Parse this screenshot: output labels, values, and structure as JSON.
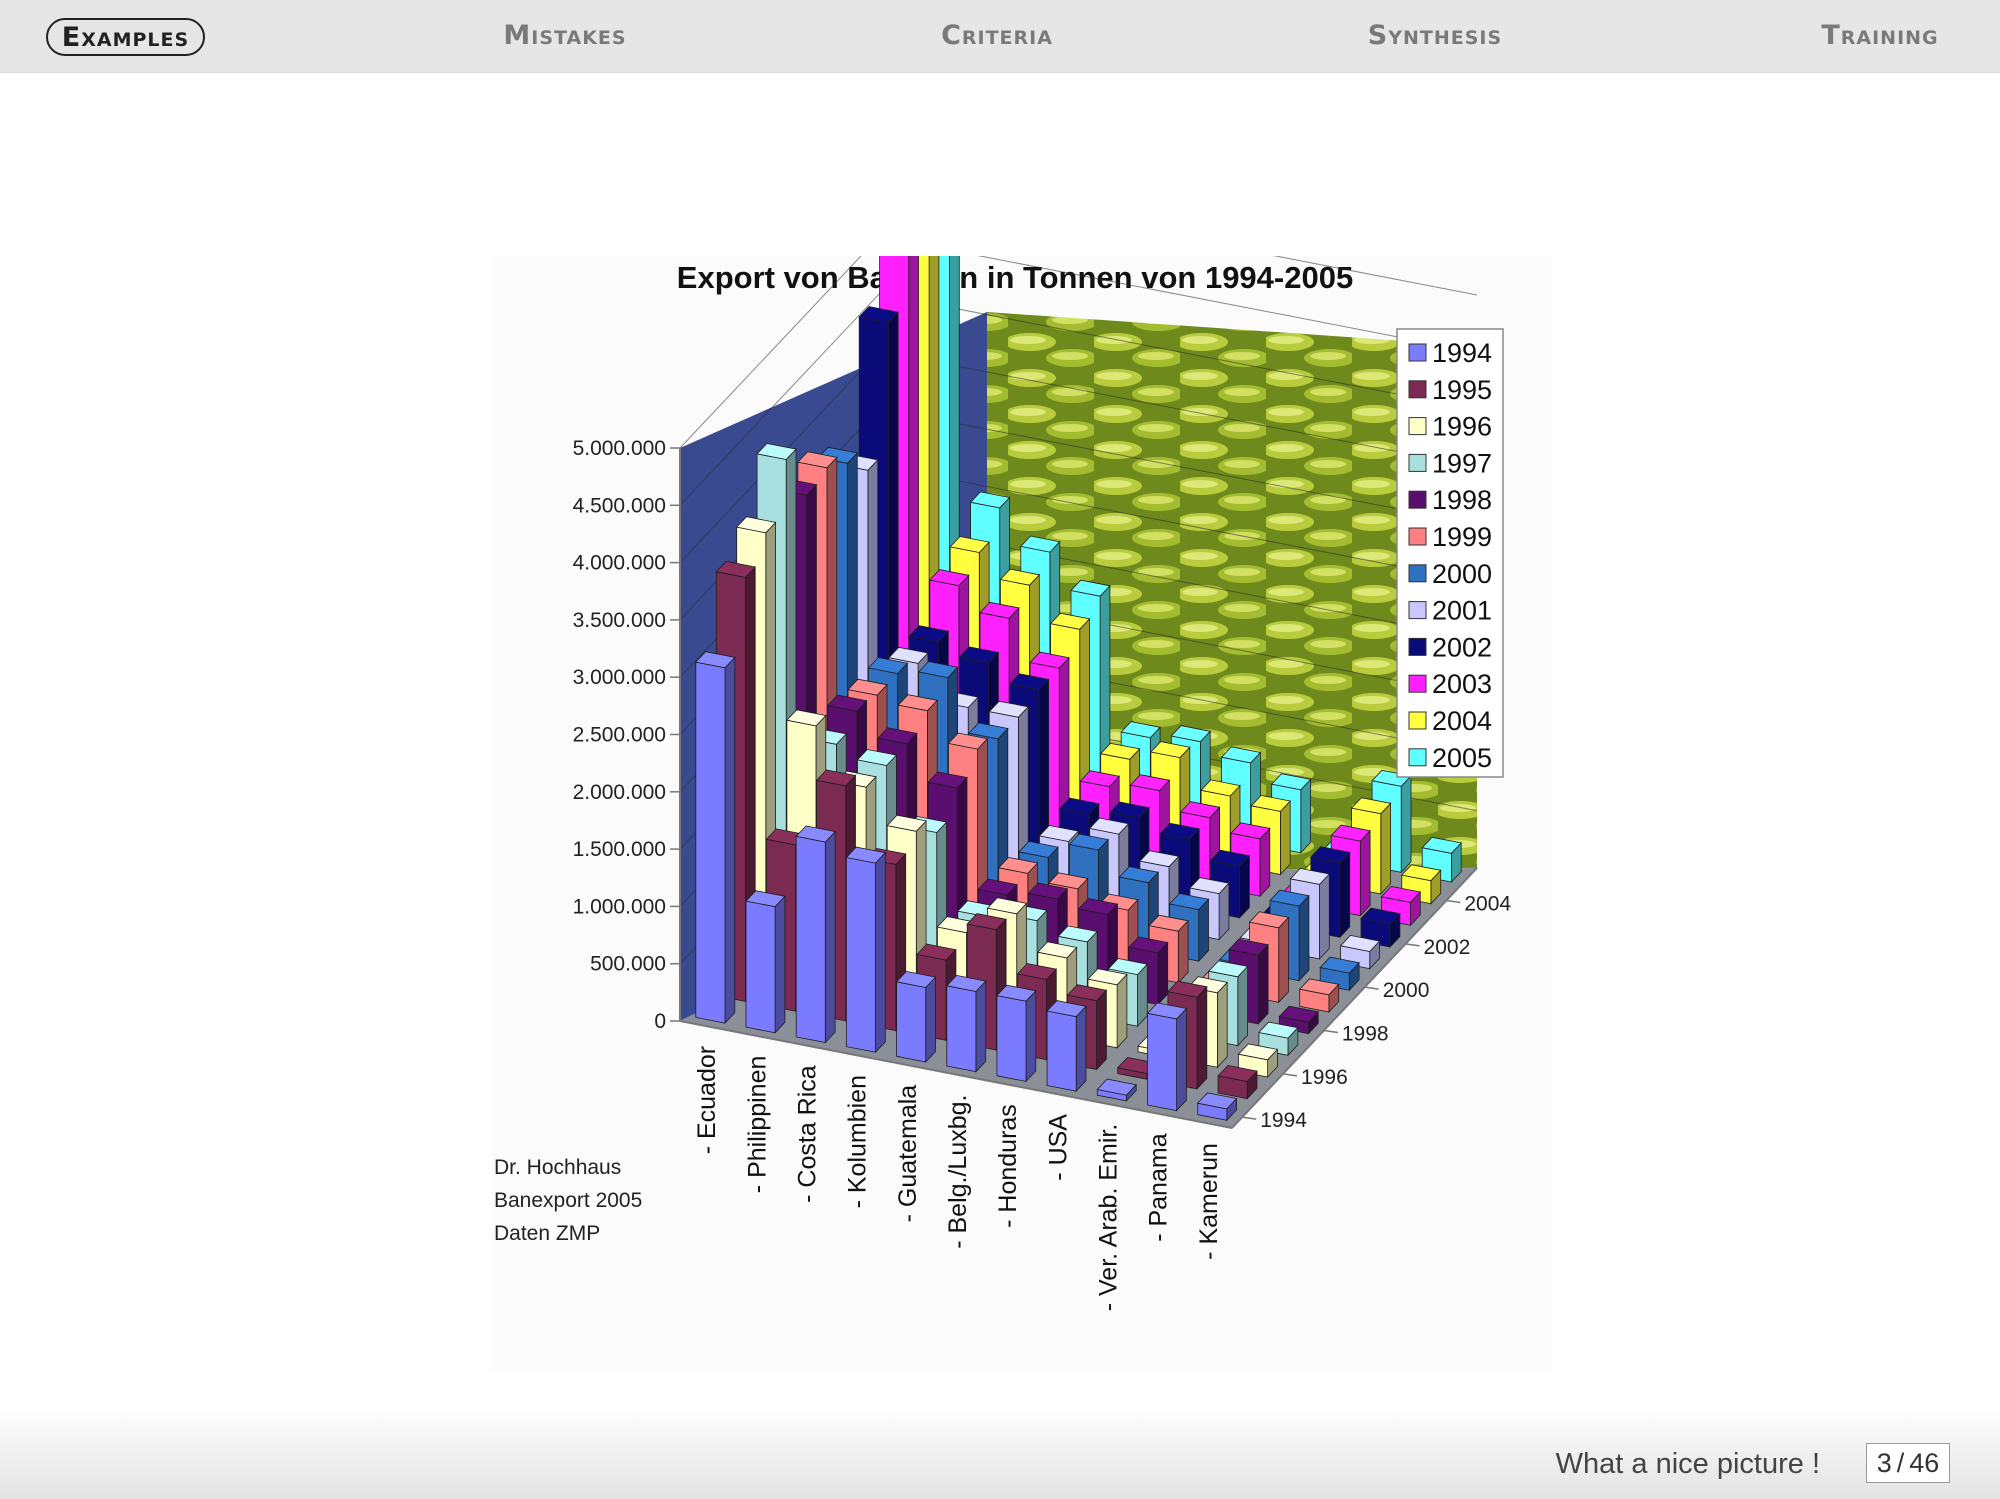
{
  "nav": {
    "items": [
      {
        "label": "Examples",
        "active": true
      },
      {
        "label": "Mistakes",
        "active": false
      },
      {
        "label": "Criteria",
        "active": false
      },
      {
        "label": "Synthesis",
        "active": false
      },
      {
        "label": "Training",
        "active": false
      }
    ]
  },
  "footer": {
    "caption": "What a nice picture !",
    "page_current": "3",
    "page_total": "46"
  },
  "figure": {
    "background": "banana-photo",
    "credit_lines": [
      "Dr. Hochhaus",
      "Banexport 2005",
      "Daten ZMP"
    ]
  },
  "chart_data": {
    "type": "bar",
    "variant": "3d-grouped",
    "title": "Export von Bananen in Tonnen von 1994-2005",
    "categories": [
      "- Ecuador",
      "- Philippinen",
      "- Costa Rica",
      "- Kolumbien",
      "- Guatemala",
      "- Belg./Luxbg.",
      "- Honduras",
      "- USA",
      "- Ver. Arab. Emir.",
      "- Panama",
      "- Kamerun"
    ],
    "y_ticks": [
      "0",
      "500.000",
      "1.000.000",
      "1.500.000",
      "2.000.000",
      "2.500.000",
      "3.000.000",
      "3.500.000",
      "4.000.000",
      "4.500.000",
      "5.000.000"
    ],
    "z_ticks": [
      "1994",
      "1996",
      "1998",
      "2000",
      "2002",
      "2004"
    ],
    "ylim": [
      0,
      5000000
    ],
    "legend_position": "top-right",
    "series": [
      {
        "name": "1994",
        "color": "#7b7bff",
        "values": [
          3100000,
          1100000,
          1750000,
          1650000,
          650000,
          700000,
          700000,
          650000,
          50000,
          800000,
          100000
        ]
      },
      {
        "name": "1995",
        "color": "#7b2a52",
        "values": [
          3700000,
          1450000,
          2050000,
          1450000,
          700000,
          1050000,
          700000,
          600000,
          50000,
          800000,
          150000
        ]
      },
      {
        "name": "1996",
        "color": "#ffffc8",
        "values": [
          3900000,
          2300000,
          1850000,
          1550000,
          750000,
          1000000,
          700000,
          550000,
          50000,
          650000,
          150000
        ]
      },
      {
        "name": "1997",
        "color": "#a8e0e0",
        "values": [
          4350000,
          1950000,
          1850000,
          1350000,
          700000,
          750000,
          650000,
          450000,
          50000,
          600000,
          150000
        ]
      },
      {
        "name": "1998",
        "color": "#5a0e6e",
        "values": [
          3850000,
          2050000,
          1850000,
          1550000,
          700000,
          750000,
          700000,
          450000,
          50000,
          600000,
          100000
        ]
      },
      {
        "name": "1999",
        "color": "#ff8080",
        "values": [
          3900000,
          2000000,
          1950000,
          1700000,
          700000,
          650000,
          550000,
          450000,
          50000,
          650000,
          150000
        ]
      },
      {
        "name": "2000",
        "color": "#3070c0",
        "values": [
          3750000,
          2000000,
          2050000,
          1600000,
          650000,
          800000,
          600000,
          450000,
          50000,
          650000,
          150000
        ]
      },
      {
        "name": "2001",
        "color": "#c8c8ff",
        "values": [
          3500000,
          1900000,
          1600000,
          1600000,
          600000,
          750000,
          550000,
          400000,
          50000,
          650000,
          150000
        ]
      },
      {
        "name": "2002",
        "color": "#0a0a78",
        "values": [
          4600000,
          1900000,
          1800000,
          1650000,
          650000,
          700000,
          600000,
          450000,
          50000,
          650000,
          200000
        ]
      },
      {
        "name": "2003",
        "color": "#ff20ff",
        "values": [
          5050000,
          2200000,
          2000000,
          1650000,
          700000,
          750000,
          600000,
          500000,
          50000,
          650000,
          200000
        ]
      },
      {
        "name": "2004",
        "color": "#ffff40",
        "values": [
          5100000,
          2300000,
          2100000,
          1800000,
          750000,
          850000,
          600000,
          550000,
          50000,
          700000,
          200000
        ]
      },
      {
        "name": "2005",
        "color": "#60ffff",
        "values": [
          5250000,
          2500000,
          2200000,
          1900000,
          750000,
          800000,
          700000,
          550000,
          50000,
          750000,
          250000
        ]
      }
    ]
  }
}
